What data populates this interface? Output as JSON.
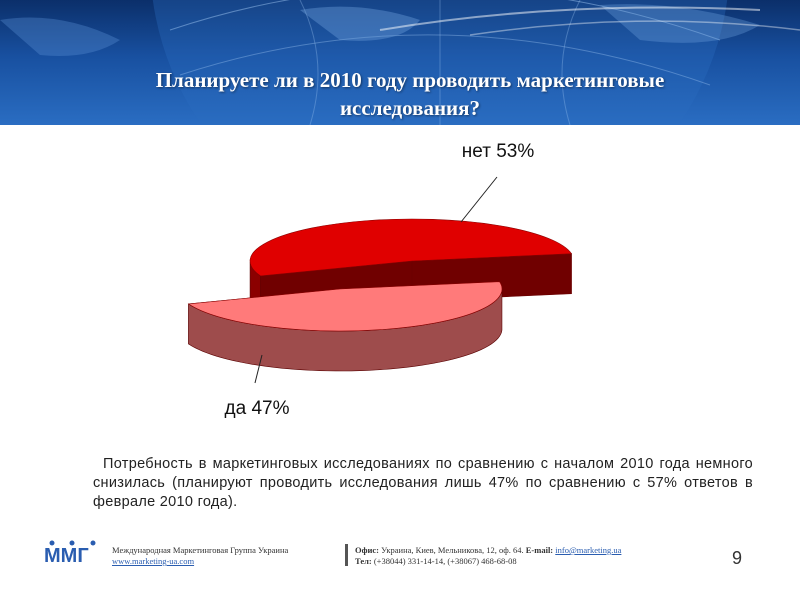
{
  "slide": {
    "title_line1": "Планируете ли в 2010 году проводить маркетинговые",
    "title_line2": "исследования?",
    "page_number": "9"
  },
  "chart_data": {
    "type": "pie",
    "title": "",
    "slices": [
      {
        "label": "нет",
        "value": 53,
        "display": "нет 53%",
        "color": "#e00000"
      },
      {
        "label": "да",
        "value": 47,
        "display": "да 47%",
        "color": "#ff7a7a"
      }
    ],
    "legend": "none",
    "style": "3d-exploded"
  },
  "caption": "Потребность в маркетинговых исследованиях по сравнению с началом 2010 года немного снизилась (планируют проводить исследования лишь 47% по сравнению с 57% ответов в феврале 2010 года).",
  "footer": {
    "company_name": "Международная Маркетинговая Группа Украина",
    "company_url": "www.marketing-ua.com",
    "office_label": "Офис:",
    "office_address": "Украина, Киев, Мельникова, 12, оф. 64.",
    "email_label": "E-mail:",
    "email": "info@marketing.ua",
    "phone_label": "Тел:",
    "phones": "(+38044) 331-14-14, (+38067) 468-68-08"
  }
}
